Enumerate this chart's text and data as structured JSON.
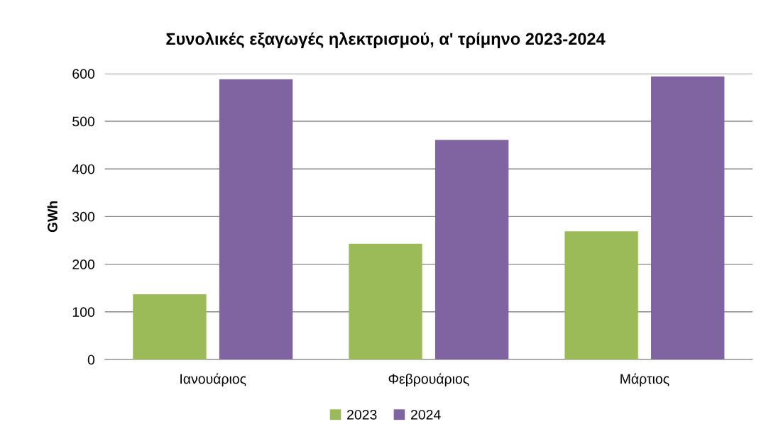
{
  "chart_data": {
    "type": "bar",
    "title": "Συνολικές εξαγωγές ηλεκτρισμού, α' τρίμηνο 2023-2024",
    "ylabel": "GWh",
    "categories": [
      "Ιανουάριος",
      "Φεβρουάριος",
      "Μάρτιος"
    ],
    "series": [
      {
        "name": "2023",
        "color": "#9bbb59",
        "values": [
          137,
          243,
          269
        ]
      },
      {
        "name": "2024",
        "color": "#8064a2",
        "values": [
          588,
          461,
          594
        ]
      }
    ],
    "ylim": [
      0,
      600
    ],
    "yticks": [
      0,
      100,
      200,
      300,
      400,
      500,
      600
    ],
    "grid": "y",
    "legend": "bottom"
  }
}
